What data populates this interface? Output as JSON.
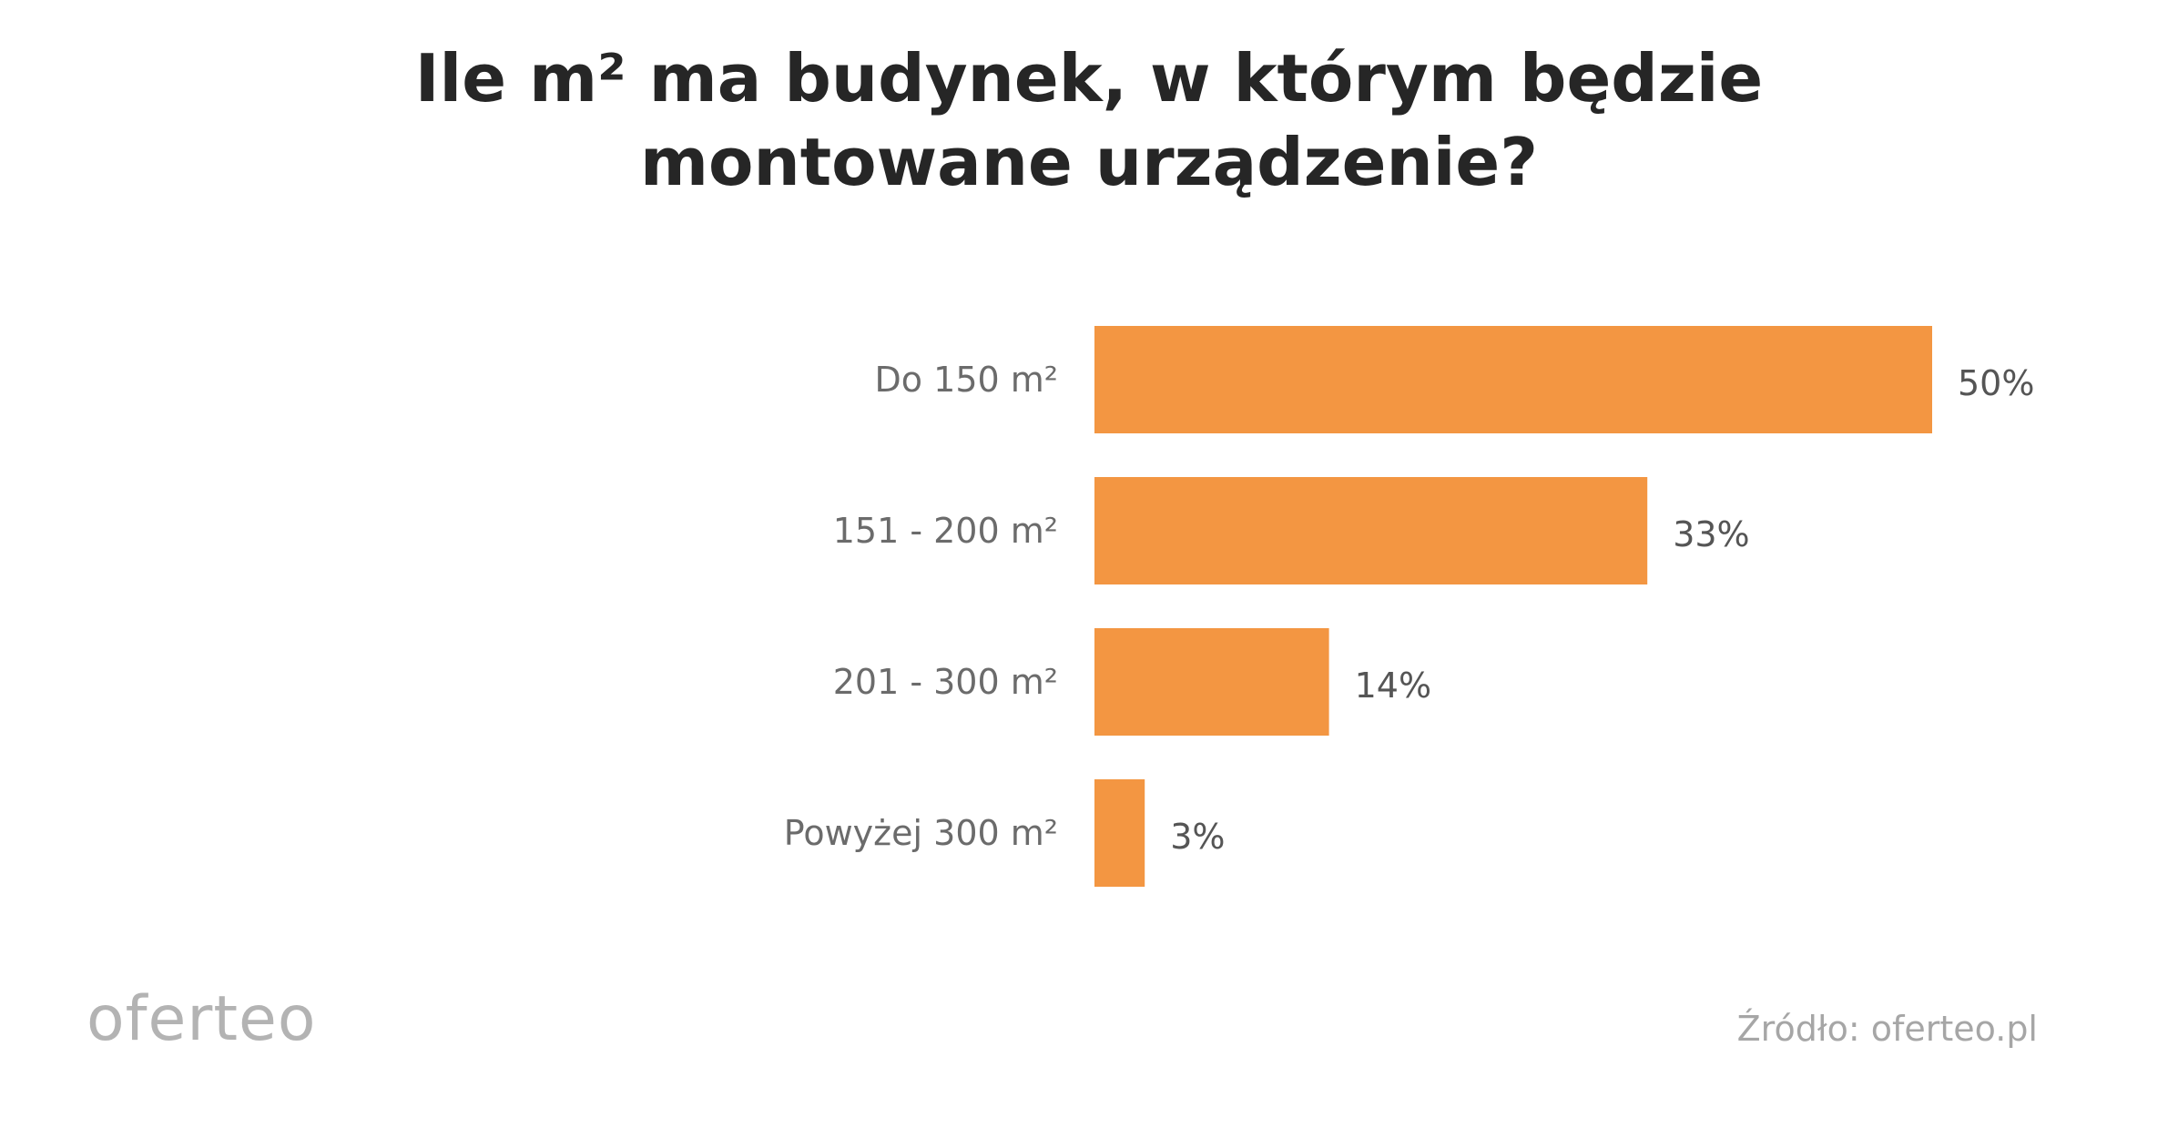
{
  "title_lines": [
    "Ile m² ma budynek, w którym będzie",
    "montowane urządzenie?"
  ],
  "chart_data": {
    "type": "bar",
    "orientation": "horizontal",
    "title": "Ile m² ma budynek, w którym będzie montowane urządzenie?",
    "categories": [
      "Do 150 m²",
      "151 - 200 m²",
      "201 - 300 m²",
      "Powyżej 300 m²"
    ],
    "values": [
      50,
      33,
      14,
      3
    ],
    "value_labels": [
      "50%",
      "33%",
      "14%",
      "3%"
    ],
    "unit": "%",
    "xlim": [
      0,
      50
    ],
    "grid": false,
    "legend": "none",
    "bar_color": "#f39642"
  },
  "footer": {
    "logo_text": "oferteo",
    "source": "Źródło: oferteo.pl"
  }
}
